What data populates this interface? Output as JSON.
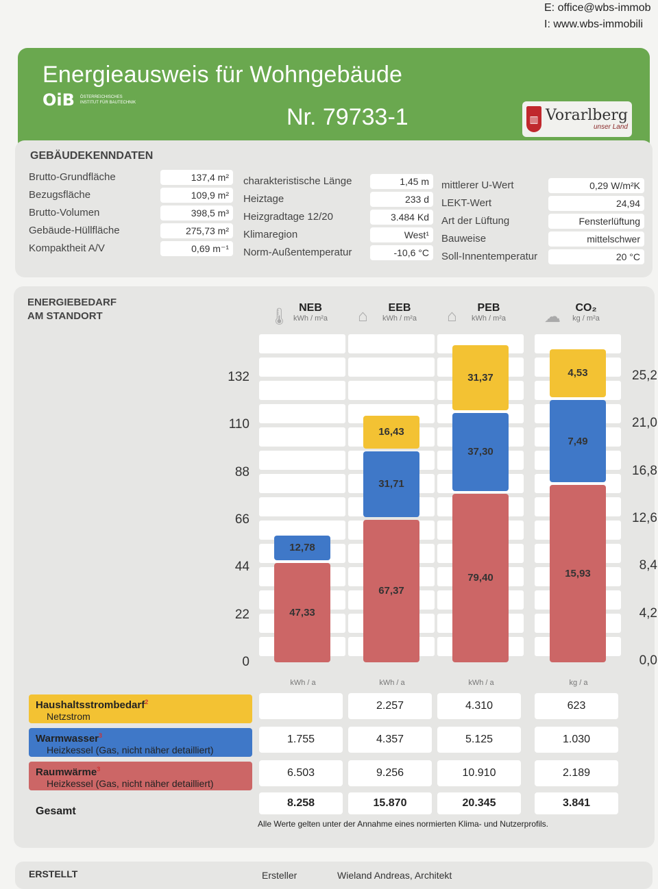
{
  "contact": {
    "email": "E: office@wbs-immob",
    "web": "I: www.wbs-immobili"
  },
  "header": {
    "title": "Energieausweis für Wohngebäude",
    "number": "Nr. 79733-1",
    "oib_mark": "OiB",
    "oib_text_1": "ÖSTERREICHISCHES",
    "oib_text_2": "INSTITUT FÜR BAUTECHNIK",
    "region_logo": "Vorarlberg",
    "region_sub": "unser Land"
  },
  "building": {
    "heading": "GEBÄUDEKENNDATEN",
    "col1": [
      {
        "label": "Brutto-Grundfläche",
        "value": "137,4 m²"
      },
      {
        "label": "Bezugsfläche",
        "value": "109,9 m²"
      },
      {
        "label": "Brutto-Volumen",
        "value": "398,5 m³"
      },
      {
        "label": "Gebäude-Hüllfläche",
        "value": "275,73 m²"
      },
      {
        "label": "Kompaktheit A/V",
        "value": "0,69 m⁻¹"
      }
    ],
    "col2": [
      {
        "label": "charakteristische Länge",
        "value": "1,45 m"
      },
      {
        "label": "Heiztage",
        "value": "233 d"
      },
      {
        "label": "Heizgradtage 12/20",
        "value": "3.484 Kd"
      },
      {
        "label": "Klimaregion",
        "value": "West¹"
      },
      {
        "label": "Norm-Außentemperatur",
        "value": "-10,6 °C"
      }
    ],
    "col3": [
      {
        "label": "mittlerer U-Wert",
        "value": "0,29 W/m²K"
      },
      {
        "label": "LEKT-Wert",
        "value": "24,94"
      },
      {
        "label": "Art der Lüftung",
        "value": "Fensterlüftung"
      },
      {
        "label": "Bauweise",
        "value": "mittelschwer"
      },
      {
        "label": "Soll-Innentemperatur",
        "value": "20 °C"
      }
    ]
  },
  "energy": {
    "heading_1": "ENERGIEBEDARF",
    "heading_2": "AM STANDORT",
    "columns": [
      {
        "name": "NEB",
        "unit": "kWh / m²a",
        "icon": "thermometer-icon",
        "annual_unit": "kWh / a"
      },
      {
        "name": "EEB",
        "unit": "kWh / m²a",
        "icon": "house-icon",
        "annual_unit": "kWh / a"
      },
      {
        "name": "PEB",
        "unit": "kWh / m²a",
        "icon": "factory-icon",
        "annual_unit": "kWh / a"
      },
      {
        "name": "CO₂",
        "unit": "kg / m²a",
        "icon": "cloud-icon",
        "annual_unit": "kg / a"
      }
    ],
    "rows": [
      {
        "label": "Haushaltsstrombedarf",
        "sup": "2",
        "sub": "Netzstrom",
        "color": "#f3c233",
        "values": [
          "",
          "2.257",
          "4.310",
          "623"
        ]
      },
      {
        "label": "Warmwasser",
        "sup": "3",
        "sub": "Heizkessel (Gas, nicht näher detailliert)",
        "color": "#3f78c8",
        "values": [
          "1.755",
          "4.357",
          "5.125",
          "1.030"
        ]
      },
      {
        "label": "Raumwärme",
        "sup": "3",
        "sub": "Heizkessel (Gas, nicht näher detailliert)",
        "color": "#cc6666",
        "values": [
          "6.503",
          "9.256",
          "10.910",
          "2.189"
        ]
      }
    ],
    "total": {
      "label": "Gesamt",
      "values": [
        "8.258",
        "15.870",
        "20.345",
        "3.841"
      ]
    },
    "note": "Alle Werte gelten unter der Annahme eines normierten Klima- und Nutzerprofils."
  },
  "chart_data": {
    "type": "bar",
    "stacked": true,
    "categories": [
      "NEB",
      "EEB",
      "PEB",
      "CO₂"
    ],
    "series": [
      {
        "name": "Raumwärme",
        "color": "#cc6666",
        "values": [
          "47,33",
          "67,37",
          "79,40",
          "15,93"
        ]
      },
      {
        "name": "Warmwasser",
        "color": "#3f78c8",
        "values": [
          "12,78",
          "31,71",
          "37,30",
          "7,49"
        ]
      },
      {
        "name": "Haushaltsstrombedarf",
        "color": "#f3c233",
        "values": [
          null,
          "16,43",
          "31,37",
          "4,53"
        ]
      }
    ],
    "left_axis_ticks": [
      "0",
      "22",
      "44",
      "66",
      "88",
      "110",
      "132"
    ],
    "right_axis_ticks": [
      "0,0",
      "4,2",
      "8,4",
      "12,6",
      "16,8",
      "21,0",
      "25,2"
    ],
    "left_ylim": [
      0,
      132
    ],
    "right_ylim": [
      0,
      25.2
    ]
  },
  "footer": {
    "heading": "ERSTELLT",
    "label": "Ersteller",
    "value": "Wieland Andreas, Architekt"
  }
}
